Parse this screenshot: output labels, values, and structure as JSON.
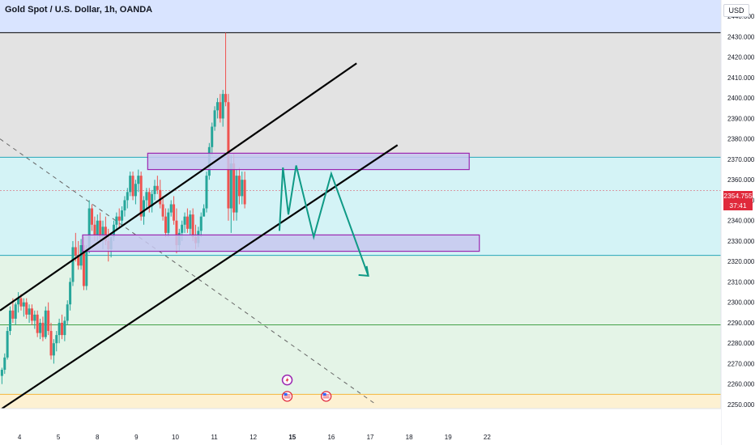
{
  "header": {
    "title": "Gold Spot / U.S. Dollar, 1h, OANDA",
    "currency": "USD"
  },
  "price_label": {
    "price": "2354.755",
    "countdown": "37:41"
  },
  "colors": {
    "up": "#26a69a",
    "down": "#ef5350",
    "channel": "#000000",
    "zone_fill": "#c7c7ef",
    "zone_stroke": "#9c27b0",
    "projection": "#0f9a86",
    "band_top": "#d9e4ff",
    "band_gray": "#e3e3e3",
    "band_cyan": "#d4f3f6",
    "band_green": "#e4f4e7",
    "band_yellow": "#fdf1d2",
    "price_tag": "#e0293b"
  },
  "chart_data": {
    "type": "candlestick",
    "title": "Gold Spot / U.S. Dollar, 1h, OANDA",
    "x_unit": "day",
    "xlim": [
      3.5,
      22
    ],
    "ylim": [
      2248,
      2448
    ],
    "x_ticks": [
      {
        "label": "4",
        "x": 4
      },
      {
        "label": "5",
        "x": 5
      },
      {
        "label": "8",
        "x": 6
      },
      {
        "label": "9",
        "x": 7
      },
      {
        "label": "10",
        "x": 8
      },
      {
        "label": "11",
        "x": 9
      },
      {
        "label": "12",
        "x": 10
      },
      {
        "label": "15",
        "x": 11,
        "bold": true
      },
      {
        "label": "16",
        "x": 12
      },
      {
        "label": "17",
        "x": 13
      },
      {
        "label": "18",
        "x": 14
      },
      {
        "label": "19",
        "x": 15
      },
      {
        "label": "22",
        "x": 16
      }
    ],
    "y_ticks": [
      2250,
      2260,
      2270,
      2280,
      2290,
      2300,
      2310,
      2320,
      2330,
      2340,
      2350,
      2360,
      2370,
      2380,
      2390,
      2400,
      2410,
      2420,
      2430,
      2440
    ],
    "last_price": 2354.755,
    "horizontal_levels": [
      {
        "price": 2432,
        "color": "#000000"
      },
      {
        "price": 2371,
        "color": "#26a6b8"
      },
      {
        "price": 2323,
        "color": "#26a6b8"
      },
      {
        "price": 2289,
        "color": "#43a047"
      },
      {
        "price": 2255,
        "color": "#f5b73b"
      }
    ],
    "bands": [
      {
        "from": 2432,
        "to": 2448,
        "color": "#d9e4ff"
      },
      {
        "from": 2371,
        "to": 2432,
        "color": "#e3e3e3"
      },
      {
        "from": 2323,
        "to": 2371,
        "color": "#d4f3f6"
      },
      {
        "from": 2255,
        "to": 2323,
        "color": "#e4f4e7"
      },
      {
        "from": 2248,
        "to": 2255,
        "color": "#fdf1d2"
      }
    ],
    "zones": [
      {
        "x1": 7.29,
        "x2": 15.54,
        "y1": 2365,
        "y2": 2373
      },
      {
        "x1": 5.62,
        "x2": 15.8,
        "y1": 2325,
        "y2": 2333
      }
    ],
    "channel_lines": [
      {
        "x1": 3.5,
        "y1": 2296,
        "x2": 12.65,
        "y2": 2417
      },
      {
        "x1": 3.55,
        "y1": 2248,
        "x2": 13.7,
        "y2": 2377
      }
    ],
    "dashed_line": {
      "x1": 3.5,
      "y1": 2380,
      "x2": 13.15,
      "y2": 2250
    },
    "projection_path": [
      {
        "x": 10.67,
        "y": 2335
      },
      {
        "x": 10.76,
        "y": 2366
      },
      {
        "x": 10.9,
        "y": 2343
      },
      {
        "x": 11.1,
        "y": 2367
      },
      {
        "x": 11.55,
        "y": 2332
      },
      {
        "x": 12.0,
        "y": 2363
      },
      {
        "x": 12.95,
        "y": 2313
      }
    ],
    "events": [
      {
        "x": 10.87,
        "y": 2262,
        "icon": "lightning-icon"
      },
      {
        "x": 10.87,
        "y": 2254,
        "icon": "us-flag-icon"
      },
      {
        "x": 11.87,
        "y": 2254,
        "icon": "us-flag-icon"
      }
    ],
    "candles": [
      [
        3.55,
        2264,
        2268,
        2260,
        2267
      ],
      [
        3.62,
        2267,
        2275,
        2265,
        2273
      ],
      [
        3.69,
        2273,
        2288,
        2272,
        2286
      ],
      [
        3.76,
        2286,
        2298,
        2284,
        2296
      ],
      [
        3.83,
        2296,
        2302,
        2290,
        2292
      ],
      [
        3.9,
        2292,
        2300,
        2289,
        2299
      ],
      [
        3.97,
        2299,
        2305,
        2295,
        2302
      ],
      [
        4.04,
        2302,
        2304,
        2296,
        2298
      ],
      [
        4.11,
        2298,
        2302,
        2293,
        2300
      ],
      [
        4.18,
        2300,
        2302,
        2292,
        2294
      ],
      [
        4.25,
        2294,
        2299,
        2290,
        2297
      ],
      [
        4.32,
        2297,
        2299,
        2289,
        2291
      ],
      [
        4.39,
        2291,
        2296,
        2287,
        2294
      ],
      [
        4.46,
        2294,
        2296,
        2283,
        2285
      ],
      [
        4.53,
        2285,
        2292,
        2282,
        2290
      ],
      [
        4.6,
        2290,
        2293,
        2281,
        2283
      ],
      [
        4.67,
        2283,
        2298,
        2282,
        2296
      ],
      [
        4.74,
        2296,
        2300,
        2284,
        2286
      ],
      [
        4.81,
        2286,
        2290,
        2272,
        2274
      ],
      [
        4.88,
        2274,
        2282,
        2270,
        2280
      ],
      [
        4.95,
        2280,
        2286,
        2276,
        2284
      ],
      [
        5.02,
        2284,
        2292,
        2280,
        2290
      ],
      [
        5.09,
        2290,
        2294,
        2282,
        2284
      ],
      [
        5.16,
        2284,
        2293,
        2281,
        2291
      ],
      [
        5.23,
        2291,
        2301,
        2289,
        2299
      ],
      [
        5.3,
        2299,
        2312,
        2296,
        2310
      ],
      [
        5.37,
        2310,
        2330,
        2308,
        2327
      ],
      [
        5.44,
        2327,
        2334,
        2320,
        2323
      ],
      [
        5.51,
        2323,
        2330,
        2316,
        2318
      ],
      [
        5.58,
        2318,
        2331,
        2316,
        2328
      ],
      [
        5.65,
        2328,
        2332,
        2306,
        2308
      ],
      [
        5.72,
        2308,
        2328,
        2306,
        2326
      ],
      [
        5.79,
        2326,
        2350,
        2324,
        2346
      ],
      [
        5.86,
        2346,
        2348,
        2335,
        2338
      ],
      [
        5.93,
        2338,
        2342,
        2330,
        2333
      ],
      [
        6.0,
        2333,
        2343,
        2330,
        2340
      ],
      [
        6.07,
        2340,
        2344,
        2330,
        2332
      ],
      [
        6.14,
        2332,
        2340,
        2326,
        2337
      ],
      [
        6.21,
        2337,
        2342,
        2328,
        2330
      ],
      [
        6.28,
        2330,
        2336,
        2320,
        2326
      ],
      [
        6.35,
        2326,
        2334,
        2322,
        2332
      ],
      [
        6.42,
        2332,
        2340,
        2330,
        2338
      ],
      [
        6.49,
        2338,
        2344,
        2335,
        2342
      ],
      [
        6.56,
        2342,
        2346,
        2336,
        2340
      ],
      [
        6.63,
        2340,
        2347,
        2337,
        2345
      ],
      [
        6.7,
        2345,
        2352,
        2342,
        2350
      ],
      [
        6.77,
        2350,
        2356,
        2346,
        2354
      ],
      [
        6.84,
        2354,
        2364,
        2352,
        2362
      ],
      [
        6.91,
        2362,
        2364,
        2350,
        2352
      ],
      [
        6.98,
        2352,
        2360,
        2348,
        2358
      ],
      [
        7.05,
        2358,
        2365,
        2354,
        2362
      ],
      [
        7.12,
        2362,
        2364,
        2340,
        2342
      ],
      [
        7.19,
        2342,
        2352,
        2338,
        2350
      ],
      [
        7.26,
        2350,
        2356,
        2346,
        2354
      ],
      [
        7.33,
        2354,
        2356,
        2344,
        2347
      ],
      [
        7.4,
        2347,
        2355,
        2344,
        2353
      ],
      [
        7.47,
        2353,
        2360,
        2350,
        2357
      ],
      [
        7.54,
        2357,
        2362,
        2353,
        2355
      ],
      [
        7.61,
        2355,
        2360,
        2346,
        2348
      ],
      [
        7.68,
        2348,
        2352,
        2340,
        2342
      ],
      [
        7.75,
        2342,
        2346,
        2332,
        2334
      ],
      [
        7.82,
        2334,
        2346,
        2332,
        2344
      ],
      [
        7.89,
        2344,
        2350,
        2342,
        2348
      ],
      [
        7.96,
        2348,
        2352,
        2338,
        2340
      ],
      [
        8.03,
        2340,
        2346,
        2324,
        2328
      ],
      [
        8.1,
        2328,
        2336,
        2325,
        2334
      ],
      [
        8.17,
        2334,
        2340,
        2330,
        2338
      ],
      [
        8.24,
        2338,
        2344,
        2334,
        2342
      ],
      [
        8.31,
        2342,
        2346,
        2334,
        2336
      ],
      [
        8.38,
        2336,
        2345,
        2333,
        2343
      ],
      [
        8.45,
        2343,
        2346,
        2330,
        2332
      ],
      [
        8.52,
        2332,
        2338,
        2326,
        2329
      ],
      [
        8.59,
        2329,
        2337,
        2327,
        2335
      ],
      [
        8.66,
        2335,
        2344,
        2332,
        2342
      ],
      [
        8.73,
        2342,
        2348,
        2344,
        2346
      ],
      [
        8.8,
        2346,
        2364,
        2344,
        2362
      ],
      [
        8.87,
        2362,
        2378,
        2360,
        2376
      ],
      [
        8.94,
        2376,
        2388,
        2372,
        2386
      ],
      [
        9.01,
        2386,
        2396,
        2384,
        2394
      ],
      [
        9.08,
        2394,
        2400,
        2390,
        2398
      ],
      [
        9.15,
        2398,
        2402,
        2388,
        2390
      ],
      [
        9.22,
        2390,
        2404,
        2386,
        2402
      ],
      [
        9.29,
        2402,
        2432,
        2396,
        2398
      ],
      [
        9.36,
        2398,
        2402,
        2340,
        2346
      ],
      [
        9.43,
        2346,
        2372,
        2334,
        2368
      ],
      [
        9.5,
        2368,
        2373,
        2340,
        2344
      ],
      [
        9.57,
        2344,
        2365,
        2340,
        2362
      ],
      [
        9.64,
        2362,
        2366,
        2348,
        2352
      ],
      [
        9.71,
        2352,
        2364,
        2348,
        2360
      ],
      [
        9.78,
        2360,
        2364,
        2346,
        2348
      ]
    ]
  }
}
